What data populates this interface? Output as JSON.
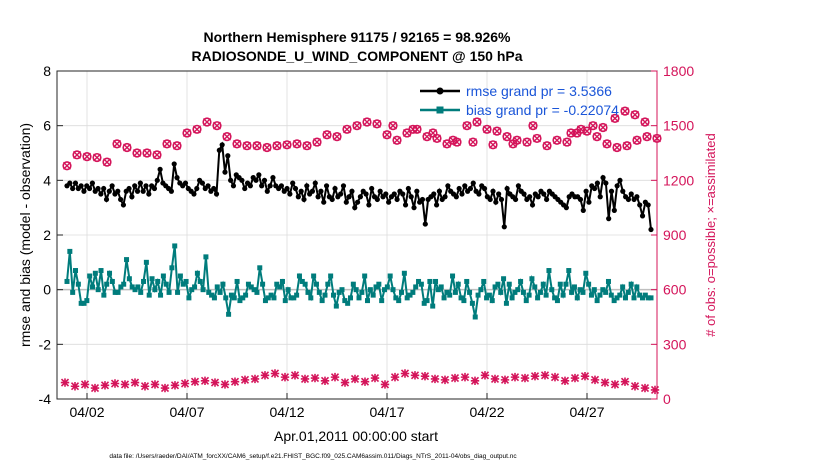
{
  "chart_data": {
    "type": "line",
    "title_line1": "Northern Hemisphere 91175 / 92165 = 98.926%",
    "title_line2": "RADIOSONDE_U_WIND_COMPONENT @ 150 hPa",
    "xlabel": "Apr.01,2011 00:00:00 start",
    "ylabel_left": "rmse and bias (model - observation)",
    "ylabel_right": "# of obs: o=possible; ×=assimilated",
    "footnote": "data file: /Users/raeder/DAI/ATM_forcXX/CAM6_setup/f.e21.FHIST_BGC.f09_025.CAM6assim.011/Diags_NTrS_2011-04/obs_diag_output.nc",
    "xlim": [
      0.5,
      30.5
    ],
    "ylim_left": [
      -4,
      8
    ],
    "ylim_right": [
      0,
      1800
    ],
    "x_tick_labels": [
      "04/02",
      "04/07",
      "04/12",
      "04/17",
      "04/22",
      "04/27"
    ],
    "x_tick_values": [
      2,
      7,
      12,
      17,
      22,
      27
    ],
    "y_left_ticks": [
      -4,
      -2,
      0,
      2,
      4,
      6,
      8
    ],
    "y_right_ticks": [
      0,
      300,
      600,
      900,
      1200,
      1500,
      1800
    ],
    "legend": {
      "rmse_label": "rmse grand pr = 3.5366",
      "bias_label": "bias grand pr = -0.22074",
      "location": "top-right"
    },
    "colors": {
      "rmse": "#000000",
      "bias": "#007c7c",
      "obs": "#d4145a",
      "zero": "#bfbfbf",
      "grid": "#dcdcdc"
    },
    "rmse": [
      3.8,
      3.9,
      3.7,
      3.9,
      3.7,
      3.8,
      3.6,
      3.8,
      3.7,
      3.9,
      3.6,
      3.7,
      3.5,
      3.7,
      3.3,
      3.6,
      3.8,
      3.5,
      3.6,
      3.3,
      3.1,
      3.6,
      3.7,
      3.4,
      3.8,
      3.6,
      3.9,
      3.6,
      3.8,
      3.5,
      3.8,
      3.7,
      4.0,
      4.4,
      3.9,
      3.8,
      3.7,
      3.6,
      4.6,
      4.1,
      3.9,
      3.8,
      3.9,
      3.7,
      3.6,
      3.5,
      3.7,
      4.0,
      3.9,
      3.7,
      3.8,
      3.6,
      3.7,
      3.5,
      5.1,
      5.3,
      4.3,
      4.9,
      4.0,
      3.8,
      4.2,
      4.1,
      4.0,
      3.7,
      3.9,
      3.8,
      4.1,
      4.0,
      4.2,
      3.8,
      4.0,
      3.6,
      3.8,
      4.1,
      3.8,
      3.7,
      3.8,
      3.6,
      3.7,
      3.5,
      3.9,
      3.7,
      3.4,
      3.6,
      3.3,
      3.8,
      3.5,
      3.6,
      3.9,
      3.4,
      3.6,
      3.2,
      3.8,
      3.4,
      3.3,
      3.7,
      3.4,
      3.5,
      3.8,
      3.2,
      3.4,
      3.6,
      3.0,
      3.2,
      3.4,
      3.6,
      3.5,
      3.1,
      3.7,
      3.4,
      3.3,
      3.6,
      3.4,
      3.5,
      3.2,
      3.4,
      3.5,
      3.3,
      3.6,
      3.5,
      3.1,
      3.7,
      3.4,
      3.0,
      3.6,
      3.2,
      3.3,
      2.4,
      3.3,
      3.4,
      3.5,
      3.1,
      3.6,
      3.3,
      3.4,
      3.8,
      3.6,
      3.5,
      3.4,
      3.7,
      3.5,
      3.8,
      3.6,
      3.7,
      3.9,
      3.6,
      3.5,
      3.8,
      3.7,
      3.4,
      3.3,
      3.6,
      3.2,
      3.5,
      3.3,
      2.3,
      3.7,
      3.5,
      3.4,
      3.3,
      3.8,
      3.6,
      3.5,
      3.3,
      3.4,
      3.1,
      3.5,
      3.4,
      3.6,
      3.5,
      3.3,
      3.6,
      3.5,
      3.4,
      3.3,
      3.2,
      3.1,
      3.0,
      3.4,
      3.5,
      3.4,
      3.4,
      3.3,
      2.9,
      3.6,
      3.2,
      3.8,
      3.7,
      3.9,
      3.4,
      4.1,
      3.9,
      2.6,
      3.6,
      2.9,
      3.8,
      4.0,
      3.6,
      3.4,
      3.3,
      3.5,
      3.3,
      3.4,
      3.1,
      2.7,
      3.2,
      3.1,
      2.2
    ],
    "bias": [
      0.3,
      1.4,
      -0.1,
      0.7,
      0.2,
      -0.5,
      -0.5,
      -0.4,
      0.5,
      0.1,
      0.6,
      0.0,
      0.7,
      -0.2,
      0.2,
      0.6,
      0.3,
      -0.1,
      -0.1,
      0.1,
      0.2,
      1.1,
      0.4,
      0.1,
      0.0,
      0.1,
      -0.1,
      0.3,
      1.0,
      -0.2,
      0.4,
      0.0,
      0.3,
      -0.2,
      0.5,
      0.2,
      -0.1,
      0.8,
      1.6,
      -0.1,
      0.5,
      0.2,
      0.3,
      -0.3,
      0.0,
      0.1,
      0.6,
      0.3,
      0.0,
      1.2,
      -0.1,
      -0.2,
      -0.3,
      0.1,
      -0.1,
      0.2,
      -0.3,
      -0.9,
      -0.2,
      -0.3,
      0.3,
      -0.4,
      -0.3,
      -0.2,
      0.2,
      0.1,
      0.0,
      -0.1,
      0.8,
      0.2,
      -0.4,
      -0.3,
      -0.2,
      -0.3,
      0.2,
      0.1,
      0.3,
      -0.4,
      0.0,
      -0.3,
      -0.3,
      -0.2,
      0.5,
      0.3,
      0.2,
      -0.1,
      -0.3,
      0.5,
      0.2,
      -0.1,
      -0.4,
      -0.2,
      0.2,
      0.5,
      -0.2,
      -0.6,
      -0.1,
      0.0,
      -0.4,
      -0.5,
      -0.3,
      0.2,
      0.0,
      -0.3,
      -0.1,
      0.5,
      -0.4,
      0.0,
      -0.2,
      0.1,
      0.2,
      -0.4,
      0.0,
      0.1,
      0.5,
      0.0,
      -0.3,
      -0.4,
      -0.1,
      0.6,
      -0.3,
      -0.2,
      -0.1,
      0.1,
      0.3,
      0.2,
      -0.5,
      -0.4,
      0.3,
      -0.6,
      0.3,
      0.0,
      0.1,
      -0.3,
      -0.1,
      -0.2,
      0.5,
      -0.1,
      0.2,
      -0.3,
      -0.4,
      0.3,
      -0.1,
      -0.5,
      -1.0,
      -0.2,
      0.0,
      0.3,
      -0.3,
      -0.2,
      -0.4,
      0.1,
      0.2,
      -0.1,
      0.4,
      -0.5,
      0.2,
      -0.3,
      -0.1,
      0.0,
      0.3,
      -0.1,
      -0.4,
      -0.2,
      0.4,
      0.1,
      -0.3,
      -0.1,
      0.2,
      -0.2,
      0.7,
      0.0,
      -0.3,
      -0.4,
      0.2,
      -0.2,
      0.2,
      0.7,
      -0.1,
      0.1,
      -0.3,
      0.0,
      -0.1,
      0.6,
      0.2,
      -0.2,
      0.0,
      -0.4,
      -0.2,
      0.0,
      -0.1,
      0.3,
      -0.2,
      -0.4,
      -0.3,
      -0.2,
      0.1,
      -0.3,
      -0.1,
      0.2,
      -0.3,
      0.1,
      -0.2,
      -0.3,
      -0.2,
      -0.3,
      -0.3
    ],
    "obs_possible": [
      1280,
      1340,
      1330,
      1325,
      1300,
      1400,
      1380,
      1350,
      1350,
      1340,
      1400,
      1390,
      1460,
      1480,
      1520,
      1500,
      1440,
      1400,
      1390,
      1390,
      1380,
      1390,
      1395,
      1400,
      1390,
      1410,
      1450,
      1440,
      1480,
      1500,
      1520,
      1510,
      1450,
      1420,
      1460,
      1480,
      1440,
      1430,
      1400,
      1410,
      1500,
      1520,
      1480,
      1470,
      1440,
      1420,
      1410,
      1430,
      1390,
      1420,
      1410,
      1460,
      1470,
      1440,
      1400,
      1380,
      1390,
      1420,
      1440,
      1430,
      1460,
      1480,
      1500,
      1490,
      1540,
      1580,
      1560,
      1520,
      1500,
      1480,
      1460,
      1420,
      1410,
      1395,
      1400,
      1500
    ],
    "obs_possible_days": [
      1.0,
      1.5,
      2.0,
      2.5,
      3.0,
      3.5,
      4.0,
      4.5,
      5.0,
      5.5,
      6.0,
      6.5,
      7.0,
      7.5,
      8.0,
      8.5,
      9.0,
      9.5,
      10.0,
      10.5,
      11.0,
      11.5,
      12.0,
      12.5,
      13.0,
      13.5,
      14.0,
      14.5,
      15.0,
      15.5,
      16.0,
      16.5,
      17.0,
      17.5,
      18.0,
      18.5,
      19.0,
      19.5,
      20.0,
      20.5,
      21.0,
      21.5,
      22.0,
      22.5,
      23.0,
      23.5,
      24.0,
      24.5,
      25.0,
      25.5,
      26.0,
      26.5,
      27.0,
      27.5,
      28.0,
      28.5,
      29.0,
      29.5,
      30.0,
      30.5,
      26.2,
      26.7,
      27.3,
      27.8,
      28.4,
      28.9,
      29.4,
      29.9,
      17.3,
      18.3,
      19.3,
      20.3,
      21.3,
      22.3,
      23.3,
      24.3
    ],
    "obs_assimilated_days": [
      0.9,
      1.4,
      1.9,
      2.4,
      2.9,
      3.4,
      3.9,
      4.4,
      4.9,
      5.4,
      5.9,
      6.4,
      6.9,
      7.4,
      7.9,
      8.4,
      8.9,
      9.4,
      9.9,
      10.4,
      10.9,
      11.4,
      11.9,
      12.4,
      12.9,
      13.4,
      13.9,
      14.4,
      14.9,
      15.4,
      15.9,
      16.4,
      16.9,
      17.4,
      17.9,
      18.4,
      18.9,
      19.4,
      19.9,
      20.4,
      20.9,
      21.4,
      21.9,
      22.4,
      22.9,
      23.4,
      23.9,
      24.4,
      24.9,
      25.4,
      25.9,
      26.4,
      26.9,
      27.4,
      27.9,
      28.4,
      28.9,
      29.4,
      29.9,
      30.4
    ],
    "obs_assimilated": [
      90,
      70,
      80,
      60,
      75,
      85,
      80,
      90,
      70,
      80,
      60,
      75,
      85,
      95,
      100,
      90,
      80,
      95,
      105,
      110,
      130,
      140,
      120,
      130,
      110,
      115,
      100,
      120,
      90,
      110,
      95,
      115,
      80,
      120,
      140,
      130,
      125,
      110,
      105,
      115,
      120,
      100,
      130,
      110,
      105,
      120,
      115,
      125,
      130,
      120,
      100,
      115,
      125,
      105,
      90,
      80,
      95,
      70,
      60,
      50
    ]
  }
}
